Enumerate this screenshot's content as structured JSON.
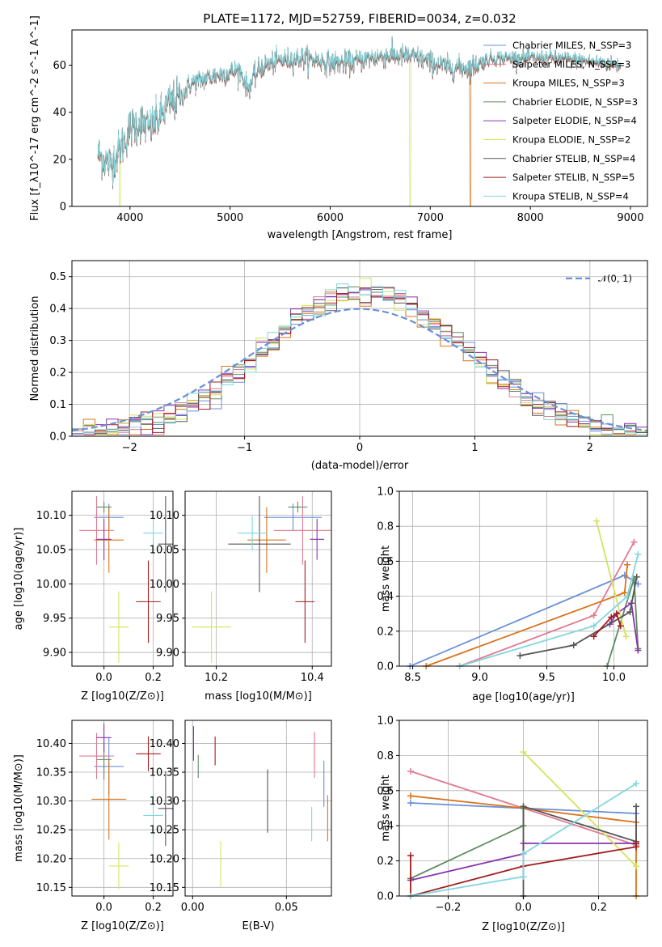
{
  "colors": {
    "Chabrier MILES": "#6a8fd8",
    "Salpeter MILES": "#e07b91",
    "Kroupa MILES": "#d9731c",
    "Chabrier ELODIE": "#5f8b5f",
    "Salpeter ELODIE": "#8a32b0",
    "Kroupa ELODIE": "#d4e35a",
    "Chabrier STELIB": "#555555",
    "Salpeter STELIB": "#a11d1d",
    "Kroupa STELIB": "#7fd7de"
  },
  "chart_data": [
    {
      "type": "line",
      "title": "PLATE=1172, MJD=52759, FIBERID=0034, z=0.032",
      "xlabel": "wavelength [Angstrom, rest frame]",
      "ylabel": "Flux [f_λ10^-17 erg cm^-2 s^-1 A^-1]",
      "xlim": [
        3420,
        9170
      ],
      "ylim": [
        0,
        75
      ],
      "xticks": [
        "4000",
        "5000",
        "6000",
        "7000",
        "8000",
        "9000"
      ],
      "yticks": [
        "0",
        "20",
        "40",
        "60"
      ],
      "grid": false,
      "legend_position": "top-right",
      "legend": [
        "Chabrier MILES, N_SSP=3",
        "Salpeter MILES, N_SSP=3",
        "Kroupa MILES, N_SSP=3",
        "Chabrier ELODIE, N_SSP=3",
        "Salpeter ELODIE, N_SSP=4",
        "Kroupa ELODIE, N_SSP=2",
        "Chabrier STELIB, N_SSP=4",
        "Salpeter STELIB, N_SSP=5",
        "Kroupa STELIB, N_SSP=4"
      ],
      "spectrum_anchors_x": [
        3680,
        3800,
        3900,
        4000,
        4100,
        4200,
        4300,
        4400,
        4500,
        4600,
        4800,
        5000,
        5100,
        5175,
        5300,
        5500,
        5700,
        5900,
        6000,
        6200,
        6400,
        6563,
        6700,
        6900,
        7000,
        7200,
        7400,
        7600,
        7800,
        8000,
        8200,
        8500,
        8900
      ],
      "spectrum_anchors_y": [
        22,
        18,
        24,
        33,
        36,
        33,
        38,
        44,
        46,
        52,
        55,
        57,
        58,
        50,
        59,
        62,
        63,
        62,
        61,
        61,
        63,
        64,
        64,
        63,
        61,
        59,
        59,
        63,
        63,
        63,
        63,
        62,
        60
      ],
      "truncations": [
        {
          "model": "Kroupa ELODIE",
          "x": 3900
        },
        {
          "model": "Kroupa ELODIE",
          "x": 6800
        },
        {
          "model": "Kroupa MILES",
          "x": 7400
        }
      ]
    },
    {
      "type": "bar",
      "subtype": "step-histogram",
      "xlabel": "(data-model)/error",
      "ylabel": "Normed distribution",
      "xlim": [
        -2.5,
        2.5
      ],
      "ylim": [
        0,
        0.55
      ],
      "xticks": [
        "−2",
        "−1",
        "0",
        "1",
        "2"
      ],
      "yticks": [
        "0.0",
        "0.1",
        "0.2",
        "0.3",
        "0.4",
        "0.5"
      ],
      "grid": true,
      "legend_position": "top-right",
      "legend": [
        "𝒩(0, 1)"
      ],
      "bin_width": 0.1,
      "reference_curve": "N(0,1) gaussian, dashed"
    },
    {
      "type": "scatter",
      "subtype": "errorbar",
      "xlabel": "Z [log10(Z/Z⊙)]",
      "ylabel": "age  [log10(age/yr)]",
      "xlim": [
        -0.13,
        0.28
      ],
      "ylim": [
        9.88,
        10.135
      ],
      "xticks": [
        "0.0",
        "0.2"
      ],
      "yticks": [
        "9.90",
        "9.95",
        "10.00",
        "10.05",
        "10.10"
      ],
      "grid": true,
      "points": [
        {
          "model": "Chabrier MILES",
          "x": 0.02,
          "y": 10.097,
          "xerr": 0.06,
          "yerr": 0.02
        },
        {
          "model": "Salpeter MILES",
          "x": -0.03,
          "y": 10.078,
          "xerr": 0.07,
          "yerr": 0.05
        },
        {
          "model": "Kroupa MILES",
          "x": 0.02,
          "y": 10.064,
          "xerr": 0.06,
          "yerr": 0.048
        },
        {
          "model": "Chabrier ELODIE",
          "x": 0.0,
          "y": 10.112,
          "xerr": 0.03,
          "yerr": 0.008
        },
        {
          "model": "Salpeter ELODIE",
          "x": 0.0,
          "y": 10.065,
          "xerr": 0.03,
          "yerr": 0.03
        },
        {
          "model": "Kroupa ELODIE",
          "x": 0.06,
          "y": 9.937,
          "xerr": 0.04,
          "yerr": 0.052
        },
        {
          "model": "Chabrier STELIB",
          "x": 0.25,
          "y": 10.058,
          "xerr": 0.03,
          "yerr": 0.07
        },
        {
          "model": "Salpeter STELIB",
          "x": 0.18,
          "y": 9.974,
          "xerr": 0.05,
          "yerr": 0.06
        },
        {
          "model": "Kroupa STELIB",
          "x": 0.2,
          "y": 10.074,
          "xerr": 0.04,
          "yerr": 0.025
        }
      ]
    },
    {
      "type": "scatter",
      "subtype": "errorbar",
      "xlabel": "mass [log10(M/M⊙)]",
      "ylabel": "",
      "xlim": [
        10.135,
        10.44
      ],
      "ylim": [
        9.88,
        10.135
      ],
      "xticks": [
        "10.2",
        "10.4"
      ],
      "yticks": [
        "9.90",
        "9.95",
        "10.00",
        "10.05",
        "10.10"
      ],
      "grid": true,
      "points": [
        {
          "model": "Chabrier MILES",
          "x": 10.36,
          "y": 10.097,
          "xerr": 0.06,
          "yerr": 0.02
        },
        {
          "model": "Salpeter MILES",
          "x": 10.38,
          "y": 10.078,
          "xerr": 0.06,
          "yerr": 0.05
        },
        {
          "model": "Kroupa MILES",
          "x": 10.305,
          "y": 10.064,
          "xerr": 0.04,
          "yerr": 0.048
        },
        {
          "model": "Chabrier ELODIE",
          "x": 10.37,
          "y": 10.112,
          "xerr": 0.02,
          "yerr": 0.008
        },
        {
          "model": "Salpeter ELODIE",
          "x": 10.41,
          "y": 10.065,
          "xerr": 0.015,
          "yerr": 0.03
        },
        {
          "model": "Kroupa ELODIE",
          "x": 10.19,
          "y": 9.937,
          "xerr": 0.04,
          "yerr": 0.052
        },
        {
          "model": "Chabrier STELIB",
          "x": 10.29,
          "y": 10.058,
          "xerr": 0.065,
          "yerr": 0.07
        },
        {
          "model": "Salpeter STELIB",
          "x": 10.385,
          "y": 9.974,
          "xerr": 0.02,
          "yerr": 0.06
        },
        {
          "model": "Kroupa STELIB",
          "x": 10.275,
          "y": 10.074,
          "xerr": 0.03,
          "yerr": 0.025
        }
      ]
    },
    {
      "type": "line",
      "xlabel": "age  [log10(age/yr)]",
      "ylabel": "mass weight",
      "xlim": [
        8.4,
        10.25
      ],
      "ylim": [
        0,
        1
      ],
      "xticks": [
        "8.5",
        "9.0",
        "9.5",
        "10.0"
      ],
      "yticks": [
        "0.0",
        "0.2",
        "0.4",
        "0.6",
        "0.8",
        "1.0"
      ],
      "grid": true,
      "series": [
        {
          "model": "Chabrier MILES",
          "x": [
            8.48,
            10.08,
            10.18
          ],
          "y": [
            0.0,
            0.52,
            0.47
          ]
        },
        {
          "model": "Salpeter MILES",
          "x": [
            8.85,
            9.85,
            10.15
          ],
          "y": [
            0.0,
            0.29,
            0.71
          ]
        },
        {
          "model": "Kroupa MILES",
          "x": [
            8.6,
            10.08,
            10.1
          ],
          "y": [
            0.0,
            0.42,
            0.58
          ]
        },
        {
          "model": "Chabrier ELODIE",
          "x": [
            9.95,
            10.15,
            10.18
          ],
          "y": [
            0.0,
            0.5,
            0.1
          ]
        },
        {
          "model": "Salpeter ELODIE",
          "x": [
            9.97,
            10.02,
            10.13,
            10.18
          ],
          "y": [
            0.24,
            0.3,
            0.36,
            0.09
          ]
        },
        {
          "model": "Kroupa ELODIE",
          "x": [
            9.87,
            10.09
          ],
          "y": [
            0.83,
            0.17
          ]
        },
        {
          "model": "Chabrier STELIB",
          "x": [
            9.3,
            9.7,
            10.12,
            10.17
          ],
          "y": [
            0.06,
            0.12,
            0.31,
            0.51
          ]
        },
        {
          "model": "Salpeter STELIB",
          "x": [
            9.85,
            9.98,
            10.02,
            10.05
          ],
          "y": [
            0.17,
            0.28,
            0.3,
            0.23
          ]
        },
        {
          "model": "Kroupa STELIB",
          "x": [
            8.85,
            9.85,
            10.1,
            10.18
          ],
          "y": [
            0.0,
            0.23,
            0.4,
            0.64
          ]
        }
      ]
    },
    {
      "type": "scatter",
      "subtype": "errorbar",
      "xlabel": "Z [log10(Z/Z⊙)]",
      "ylabel": "mass [log10(M/M⊙)]",
      "xlim": [
        -0.13,
        0.28
      ],
      "ylim": [
        10.135,
        10.44
      ],
      "xticks": [
        "0.0",
        "0.2"
      ],
      "yticks": [
        "10.15",
        "10.20",
        "10.25",
        "10.30",
        "10.35",
        "10.40"
      ],
      "grid": true,
      "points": [
        {
          "model": "Chabrier MILES",
          "x": 0.02,
          "y": 10.36,
          "xerr": 0.06,
          "yerr": 0.05
        },
        {
          "model": "Salpeter MILES",
          "x": -0.03,
          "y": 10.378,
          "xerr": 0.07,
          "yerr": 0.04
        },
        {
          "model": "Kroupa MILES",
          "x": 0.02,
          "y": 10.303,
          "xerr": 0.07,
          "yerr": 0.07
        },
        {
          "model": "Chabrier ELODIE",
          "x": 0.0,
          "y": 10.372,
          "xerr": 0.03,
          "yerr": 0.035
        },
        {
          "model": "Salpeter ELODIE",
          "x": 0.0,
          "y": 10.41,
          "xerr": 0.03,
          "yerr": 0.025
        },
        {
          "model": "Kroupa ELODIE",
          "x": 0.06,
          "y": 10.187,
          "xerr": 0.04,
          "yerr": 0.04
        },
        {
          "model": "Chabrier STELIB",
          "x": 0.25,
          "y": 10.287,
          "xerr": 0.03,
          "yerr": 0.065
        },
        {
          "model": "Salpeter STELIB",
          "x": 0.18,
          "y": 10.382,
          "xerr": 0.05,
          "yerr": 0.03
        },
        {
          "model": "Kroupa STELIB",
          "x": 0.2,
          "y": 10.275,
          "xerr": 0.04,
          "yerr": 0.04
        }
      ]
    },
    {
      "type": "scatter",
      "subtype": "errorbar",
      "xlabel": "E(B-V)",
      "ylabel": "",
      "xlim": [
        -0.004,
        0.074
      ],
      "ylim": [
        10.135,
        10.44
      ],
      "xticks": [
        "0.00",
        "0.05"
      ],
      "yticks": [
        "10.15",
        "10.20",
        "10.25",
        "10.30",
        "10.35",
        "10.40"
      ],
      "grid": true,
      "points": [
        {
          "model": "Chabrier MILES",
          "x": 0.07,
          "y": 10.33,
          "yerr": 0.04
        },
        {
          "model": "Salpeter MILES",
          "x": 0.065,
          "y": 10.38,
          "yerr": 0.04
        },
        {
          "model": "Kroupa MILES",
          "x": 0.072,
          "y": 10.27,
          "yerr": 0.04
        },
        {
          "model": "Chabrier ELODIE",
          "x": 0.003,
          "y": 10.36,
          "yerr": 0.02
        },
        {
          "model": "Salpeter ELODIE",
          "x": 0.0005,
          "y": 10.4,
          "yerr": 0.03
        },
        {
          "model": "Kroupa ELODIE",
          "x": 0.015,
          "y": 10.19,
          "yerr": 0.04
        },
        {
          "model": "Chabrier STELIB",
          "x": 0.04,
          "y": 10.3,
          "yerr": 0.055
        },
        {
          "model": "Salpeter STELIB",
          "x": 0.012,
          "y": 10.387,
          "yerr": 0.025
        },
        {
          "model": "Kroupa STELIB",
          "x": 0.0635,
          "y": 10.26,
          "yerr": 0.03
        }
      ]
    },
    {
      "type": "line",
      "xlabel": "Z [log10(Z/Z⊙)]",
      "ylabel": "mass weight",
      "xlim": [
        -0.33,
        0.33
      ],
      "ylim": [
        0,
        1
      ],
      "xticks": [
        "−0.2",
        "0.0",
        "0.2"
      ],
      "yticks": [
        "0.0",
        "0.2",
        "0.4",
        "0.6",
        "0.8",
        "1.0"
      ],
      "grid": true,
      "series": [
        {
          "model": "Chabrier MILES",
          "x": [
            -0.3,
            0.0,
            0.3
          ],
          "y": [
            0.53,
            0.5,
            0.47
          ]
        },
        {
          "model": "Salpeter MILES",
          "x": [
            -0.3,
            0.3
          ],
          "y": [
            0.71,
            0.29
          ]
        },
        {
          "model": "Kroupa MILES",
          "x": [
            -0.3,
            0.0,
            0.3,
            0.3
          ],
          "y": [
            0.57,
            0.5,
            0.42,
            0.0
          ]
        },
        {
          "model": "Chabrier ELODIE",
          "x": [
            -0.3,
            0.0,
            0.0
          ],
          "y": [
            0.1,
            0.4,
            0.5
          ]
        },
        {
          "model": "Salpeter ELODIE",
          "x": [
            -0.3,
            0.0,
            0.0,
            0.3
          ],
          "y": [
            0.09,
            0.24,
            0.3,
            0.3
          ]
        },
        {
          "model": "Kroupa ELODIE",
          "x": [
            0.0,
            0.3
          ],
          "y": [
            0.82,
            0.17
          ]
        },
        {
          "model": "Chabrier STELIB",
          "x": [
            0.0,
            0.0,
            0.3,
            0.3
          ],
          "y": [
            0.0,
            0.51,
            0.31,
            0.51
          ]
        },
        {
          "model": "Salpeter STELIB",
          "x": [
            -0.3,
            -0.3,
            0.0,
            0.3,
            0.3
          ],
          "y": [
            0.23,
            0.0,
            0.17,
            0.28,
            0.3
          ]
        },
        {
          "model": "Kroupa STELIB",
          "x": [
            -0.3,
            0.0,
            0.0,
            0.3
          ],
          "y": [
            0.0,
            0.11,
            0.24,
            0.64
          ]
        }
      ]
    }
  ]
}
